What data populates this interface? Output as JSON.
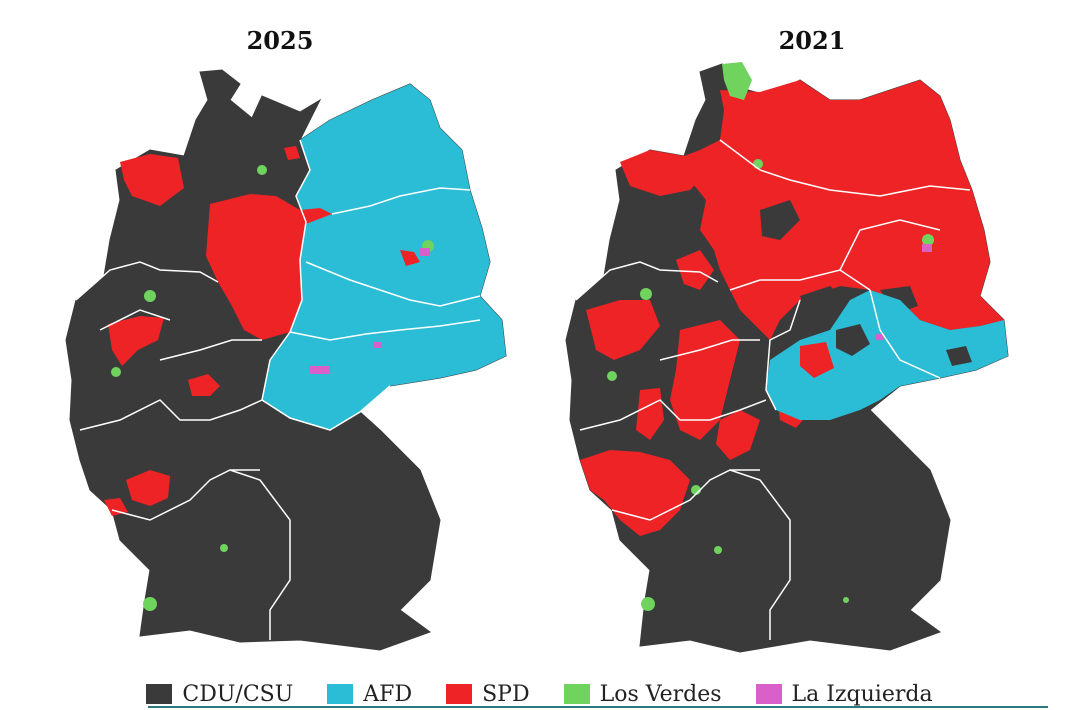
{
  "maps": [
    {
      "year": "2025"
    },
    {
      "year": "2021"
    }
  ],
  "parties": [
    {
      "name": "CDU/CSU",
      "color": "#3a3a3a"
    },
    {
      "name": "AFD",
      "color": "#2bbcd6"
    },
    {
      "name": "SPD",
      "color": "#ee2326"
    },
    {
      "name": "Los Verdes",
      "color": "#6fd35e"
    },
    {
      "name": "La Izquierda",
      "color": "#d95fc9"
    }
  ],
  "colors": {
    "border": "#ffffff",
    "accent_line": "#2c7a7b"
  }
}
